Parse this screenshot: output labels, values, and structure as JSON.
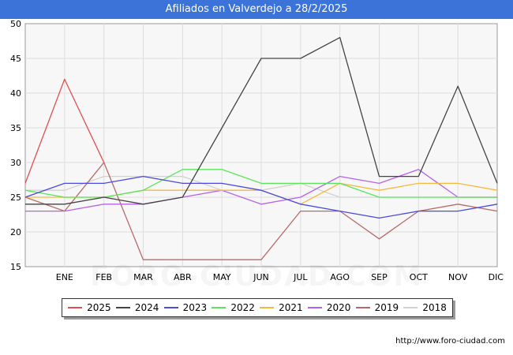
{
  "chart_data": {
    "type": "line",
    "title": "Afiliados en Valverdejo a 28/2/2025",
    "xlabel": "",
    "ylabel": "",
    "categories": [
      "",
      "ENE",
      "FEB",
      "MAR",
      "ABR",
      "MAY",
      "JUN",
      "JUL",
      "AGO",
      "SEP",
      "OCT",
      "NOV",
      "DIC"
    ],
    "ylim": [
      15,
      50
    ],
    "yticks": [
      15,
      20,
      25,
      30,
      35,
      40,
      45,
      50
    ],
    "grid": true,
    "legend_position": "bottom",
    "series": [
      {
        "name": "2025",
        "color": "#e05050",
        "values": [
          27,
          42,
          30,
          null,
          null,
          null,
          null,
          null,
          null,
          null,
          null,
          null,
          null
        ]
      },
      {
        "name": "2024",
        "color": "#444444",
        "values": [
          24,
          24,
          25,
          24,
          25,
          35,
          45,
          45,
          48,
          28,
          28,
          41,
          27
        ]
      },
      {
        "name": "2023",
        "color": "#4a4adc",
        "values": [
          25,
          27,
          27,
          28,
          27,
          27,
          26,
          24,
          23,
          22,
          23,
          23,
          24
        ]
      },
      {
        "name": "2022",
        "color": "#5ae65a",
        "values": [
          26,
          25,
          25,
          26,
          29,
          29,
          27,
          27,
          27,
          25,
          25,
          25,
          25
        ]
      },
      {
        "name": "2021",
        "color": "#f5b942",
        "values": [
          25,
          25,
          25,
          26,
          26,
          26,
          26,
          24,
          27,
          26,
          27,
          27,
          26
        ]
      },
      {
        "name": "2020",
        "color": "#b861e8",
        "values": [
          23,
          23,
          24,
          24,
          25,
          26,
          24,
          25,
          28,
          27,
          29,
          25,
          25
        ]
      },
      {
        "name": "2019",
        "color": "#b86a6a",
        "values": [
          25,
          23,
          30,
          16,
          16,
          16,
          16,
          23,
          23,
          19,
          23,
          24,
          23
        ]
      },
      {
        "name": "2018",
        "color": "#d2d2d2",
        "values": [
          26,
          26,
          28,
          28,
          28,
          26,
          26,
          27,
          25,
          25,
          25,
          25,
          25
        ]
      }
    ]
  },
  "footer": {
    "source": "http://www.foro-ciudad.com",
    "watermark": "FORO-CIUDAD.COM"
  }
}
